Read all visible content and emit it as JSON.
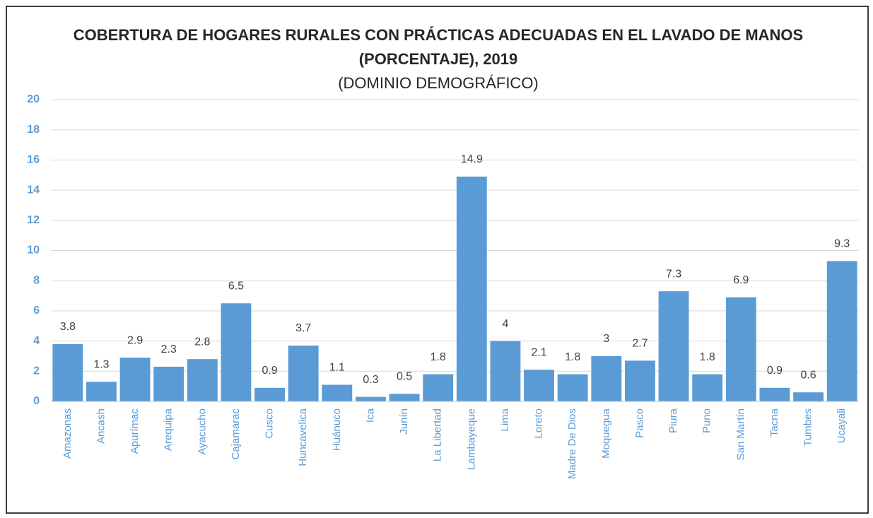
{
  "chart_data": {
    "type": "bar",
    "title": [
      "COBERTURA DE HOGARES RURALES CON PRÁCTICAS ADECUADAS EN EL LAVADO DE MANOS",
      "(PORCENTAJE), 2019"
    ],
    "subtitle": "(DOMINIO DEMOGRÁFICO)",
    "categories": [
      "Amazonas",
      "Ancash",
      "Apurímac",
      "Arequipa",
      "Ayacucho",
      "Cajamarac",
      "Cusco",
      "Huncavelica",
      "Huánuco",
      "Ica",
      "Junín",
      "La Libertad",
      "Lambayeque",
      "Lima",
      "Loreto",
      "Madre De Dios",
      "Moquegua",
      "Pasco",
      "Piura",
      "Puno",
      "San Martín",
      "Tacna",
      "Tumbes",
      "Ucayali"
    ],
    "values": [
      3.8,
      1.3,
      2.9,
      2.3,
      2.8,
      6.5,
      0.9,
      3.7,
      1.1,
      0.3,
      0.5,
      1.8,
      14.9,
      4,
      2.1,
      1.8,
      3,
      2.7,
      7.3,
      1.8,
      6.9,
      0.9,
      0.6,
      9.3
    ],
    "color": "#5b9bd5",
    "ylim": [
      0,
      20
    ],
    "yticks": [
      0,
      2,
      4,
      6,
      8,
      10,
      12,
      14,
      16,
      18,
      20
    ],
    "grid": true
  }
}
